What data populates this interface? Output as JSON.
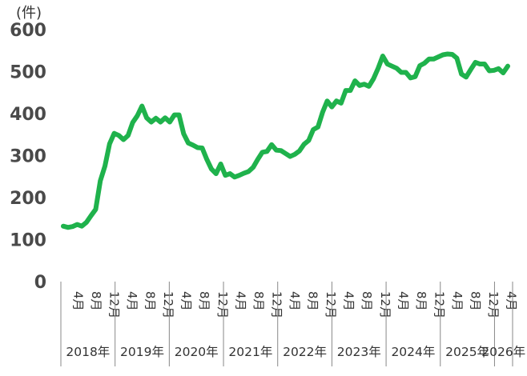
{
  "chart_data": {
    "type": "line",
    "unit_label": "(件)",
    "ylim": [
      0,
      600
    ],
    "yticks": [
      "600",
      "500",
      "400",
      "300",
      "200",
      "100",
      "0"
    ],
    "month_tick_labels": [
      "4月",
      "8月",
      "12月",
      "4月",
      "8月",
      "12月",
      "4月",
      "8月",
      "12月",
      "4月",
      "8月",
      "12月",
      "4月",
      "8月",
      "12月",
      "4月",
      "8月",
      "12月",
      "4月",
      "8月",
      "12月",
      "4月",
      "8月",
      "12月",
      "4月"
    ],
    "year_labels": [
      "2018年",
      "2019年",
      "2020年",
      "2021年",
      "2022年",
      "2023年",
      "2024年",
      "2025年",
      "2026年"
    ],
    "grid": false,
    "line_color": "#1fb24c",
    "series": [
      {
        "values": [
          132,
          129,
          131,
          136,
          132,
          141,
          157,
          172,
          240,
          275,
          328,
          353,
          348,
          338,
          348,
          379,
          395,
          418,
          390,
          380,
          389,
          380,
          390,
          380,
          397,
          397,
          352,
          330,
          325,
          319,
          318,
          291,
          268,
          257,
          280,
          253,
          257,
          249,
          253,
          258,
          262,
          272,
          291,
          308,
          310,
          326,
          313,
          312,
          305,
          298,
          303,
          311,
          327,
          336,
          362,
          368,
          403,
          430,
          416,
          430,
          425,
          455,
          455,
          478,
          467,
          470,
          465,
          483,
          508,
          537,
          518,
          513,
          508,
          498,
          498,
          485,
          488,
          514,
          520,
          530,
          530,
          535,
          540,
          542,
          541,
          532,
          494,
          487,
          505,
          522,
          518,
          518,
          502,
          503,
          507,
          497,
          513
        ]
      }
    ]
  }
}
